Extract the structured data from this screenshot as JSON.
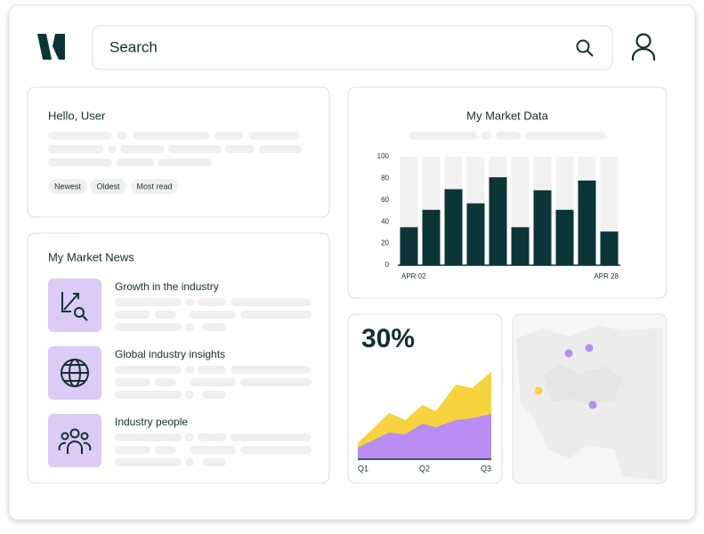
{
  "search": {
    "placeholder": "Search"
  },
  "greeting": {
    "title": "Hello, User",
    "tags": [
      "Newest",
      "Oldest",
      "Most read"
    ]
  },
  "news": {
    "title": "My Market News",
    "items": [
      "Growth in the industry",
      "Global industry insights",
      "Industry people"
    ]
  },
  "chart_data": [
    {
      "type": "bar",
      "title": "My Market Data",
      "categories": [
        "APR 02",
        null,
        null,
        null,
        null,
        null,
        null,
        null,
        null,
        "APR 28"
      ],
      "values": [
        35,
        51,
        70,
        57,
        81,
        35,
        69,
        51,
        78,
        31
      ],
      "color": "#0b3536",
      "ylim": [
        0,
        100
      ],
      "yticks": [
        0,
        20,
        40,
        60,
        80,
        100
      ]
    },
    {
      "type": "area",
      "title": "30%",
      "x": [
        0,
        0.47,
        0.71,
        0.97,
        1.17,
        1.47,
        1.71,
        2
      ],
      "xlim": [
        0,
        2
      ],
      "xticks": [
        {
          "value": 0,
          "label": "Q1"
        },
        {
          "value": 1,
          "label": "Q2"
        },
        {
          "value": 2,
          "label": "Q3"
        }
      ],
      "ylim": [
        0,
        100
      ],
      "series": [
        {
          "color": "#f6d33c",
          "values": [
            18,
            52,
            44,
            61,
            54,
            84,
            80,
            98
          ]
        },
        {
          "color": "#b88cf0",
          "values": [
            13,
            30,
            28,
            40,
            36,
            44,
            46,
            51
          ]
        }
      ]
    }
  ]
}
